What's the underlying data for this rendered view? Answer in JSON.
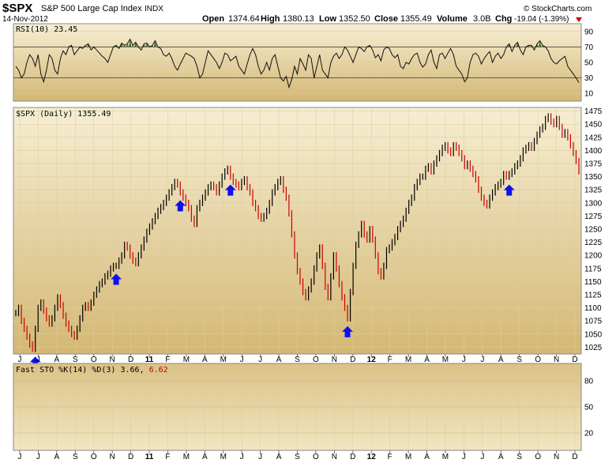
{
  "header": {
    "symbol": "$SPX",
    "name": "S&P 500 Large Cap Index",
    "exchange": "INDX",
    "date": "14-Nov-2012",
    "open_label": "Open",
    "open": "1374.64",
    "high_label": "High",
    "high": "1380.13",
    "low_label": "Low",
    "low": "1352.50",
    "close_label": "Close",
    "close": "1355.49",
    "volume_label": "Volume",
    "volume": "3.0B",
    "chg_label": "Chg",
    "chg": "-19.04 (-1.39%)",
    "copyright": "© StockCharts.com"
  },
  "colors": {
    "panel_bg_top": "#f6eed3",
    "panel_bg_bottom": "#d4b774",
    "up_bar": "#000000",
    "down_bar": "#cc0000",
    "arrow": "#1010ee",
    "rsi_fill": "#4d6b36",
    "stoch_d": "#cc0000"
  },
  "chart_data": [
    {
      "type": "line",
      "title": "RSI(10) 23.45",
      "label": "RSI(10)",
      "value": "23.45",
      "ylim": [
        0,
        100
      ],
      "y_ticks": [
        "90",
        "70",
        "50",
        "30",
        "10"
      ],
      "reference_lines": [
        70,
        30
      ],
      "series": [
        {
          "values": [
            45,
            40,
            30,
            35,
            50,
            60,
            55,
            45,
            60,
            35,
            25,
            40,
            60,
            55,
            40,
            35,
            55,
            65,
            60,
            70,
            72,
            60,
            65,
            70,
            68,
            72,
            74,
            66,
            70,
            66,
            62,
            58,
            55,
            50,
            60,
            70,
            72,
            68,
            75,
            72,
            74,
            80,
            72,
            76,
            70,
            66,
            74,
            75,
            70,
            72,
            78,
            70,
            68,
            60,
            58,
            62,
            55,
            45,
            40,
            48,
            55,
            62,
            60,
            58,
            55,
            45,
            30,
            35,
            50,
            65,
            60,
            55,
            50,
            42,
            50,
            62,
            60,
            52,
            55,
            58,
            45,
            40,
            35,
            48,
            60,
            68,
            60,
            45,
            35,
            40,
            50,
            40,
            55,
            60,
            45,
            30,
            26,
            32,
            18,
            28,
            45,
            35,
            55,
            48,
            40,
            60,
            55,
            30,
            45,
            60,
            40,
            35,
            30,
            50,
            58,
            62,
            55,
            60,
            70,
            66,
            58,
            50,
            60,
            70,
            68,
            64,
            70,
            72,
            66,
            56,
            60,
            52,
            66,
            70,
            68,
            60,
            56,
            60,
            45,
            42,
            50,
            48,
            55,
            60,
            62,
            50,
            44,
            48,
            60,
            66,
            50,
            42,
            60,
            62,
            55,
            62,
            68,
            60,
            45,
            40,
            35,
            25,
            30,
            50,
            60,
            62,
            58,
            48,
            55,
            60,
            64,
            50,
            58,
            62,
            55,
            60,
            70,
            74,
            64,
            72,
            76,
            66,
            60,
            70,
            72,
            72,
            66,
            74,
            78,
            72,
            70,
            65,
            55,
            50,
            48,
            52,
            55,
            58,
            45,
            40,
            35,
            30,
            24
          ]
        }
      ]
    },
    {
      "type": "bar",
      "title": "$SPX (Daily) 1355.49",
      "label": "$SPX (Daily)",
      "value": "1355.49",
      "ylim": [
        1012,
        1482
      ],
      "y_ticks": [
        "1475",
        "1450",
        "1425",
        "1400",
        "1375",
        "1350",
        "1325",
        "1300",
        "1275",
        "1250",
        "1225",
        "1200",
        "1175",
        "1150",
        "1125",
        "1100",
        "1075",
        "1050",
        "1025"
      ],
      "x_labels": [
        "J",
        "J",
        "A",
        "S",
        "O",
        "N",
        "D",
        "11",
        "F",
        "M",
        "A",
        "M",
        "J",
        "J",
        "A",
        "S",
        "O",
        "N",
        "D",
        "12",
        "F",
        "M",
        "A",
        "M",
        "J",
        "J",
        "A",
        "S",
        "O",
        "N",
        "D"
      ],
      "series": [
        {
          "name": "$SPX",
          "values": [
            1090,
            1100,
            1075,
            1060,
            1045,
            1030,
            1022,
            1060,
            1100,
            1110,
            1095,
            1080,
            1070,
            1080,
            1100,
            1120,
            1105,
            1085,
            1070,
            1060,
            1050,
            1045,
            1060,
            1080,
            1100,
            1105,
            1100,
            1110,
            1125,
            1135,
            1145,
            1150,
            1160,
            1165,
            1175,
            1180,
            1180,
            1190,
            1200,
            1220,
            1215,
            1200,
            1190,
            1185,
            1200,
            1215,
            1230,
            1245,
            1255,
            1265,
            1275,
            1285,
            1292,
            1300,
            1310,
            1320,
            1330,
            1340,
            1335,
            1320,
            1310,
            1300,
            1290,
            1270,
            1260,
            1290,
            1300,
            1310,
            1320,
            1330,
            1335,
            1330,
            1320,
            1335,
            1350,
            1360,
            1365,
            1350,
            1340,
            1335,
            1330,
            1340,
            1345,
            1330,
            1320,
            1300,
            1290,
            1275,
            1270,
            1275,
            1285,
            1300,
            1320,
            1330,
            1340,
            1345,
            1325,
            1310,
            1280,
            1240,
            1200,
            1170,
            1150,
            1130,
            1120,
            1135,
            1150,
            1175,
            1200,
            1215,
            1180,
            1140,
            1120,
            1160,
            1200,
            1175,
            1145,
            1120,
            1100,
            1080,
            1130,
            1180,
            1220,
            1240,
            1260,
            1240,
            1230,
            1250,
            1230,
            1200,
            1170,
            1160,
            1180,
            1210,
            1215,
            1225,
            1235,
            1250,
            1260,
            1270,
            1285,
            1300,
            1310,
            1330,
            1340,
            1350,
            1350,
            1365,
            1370,
            1360,
            1375,
            1385,
            1395,
            1405,
            1410,
            1400,
            1395,
            1410,
            1405,
            1395,
            1385,
            1370,
            1375,
            1365,
            1355,
            1345,
            1325,
            1310,
            1300,
            1295,
            1310,
            1320,
            1330,
            1335,
            1340,
            1355,
            1350,
            1355,
            1360,
            1370,
            1375,
            1385,
            1400,
            1405,
            1410,
            1405,
            1418,
            1430,
            1440,
            1445,
            1460,
            1465,
            1455,
            1450,
            1460,
            1445,
            1430,
            1435,
            1425,
            1410,
            1395,
            1380,
            1360
          ]
        }
      ],
      "annotations": [
        {
          "type": "arrow",
          "direction": "up",
          "x_index": 7
        },
        {
          "type": "arrow",
          "direction": "up",
          "x_index": 36
        },
        {
          "type": "arrow",
          "direction": "up",
          "x_index": 59
        },
        {
          "type": "arrow",
          "direction": "up",
          "x_index": 77
        },
        {
          "type": "arrow",
          "direction": "up",
          "x_index": 119
        },
        {
          "type": "arrow",
          "direction": "up",
          "x_index": 177
        },
        {
          "type": "arrow",
          "direction": "up",
          "x_index": 215
        }
      ]
    },
    {
      "type": "line",
      "title": "Fast STO %K(14) %D(3) 3.66, 6.62",
      "label": "Fast STO %K(14) %D(3)",
      "k_value": "3.66",
      "d_value": "6.62",
      "ylim": [
        0,
        100
      ],
      "y_ticks": [
        "80",
        "50",
        "20"
      ],
      "x_labels": [
        "J",
        "J",
        "A",
        "S",
        "O",
        "N",
        "D",
        "11",
        "F",
        "M",
        "A",
        "M",
        "J",
        "J",
        "A",
        "S",
        "O",
        "N",
        "D",
        "12",
        "F",
        "M",
        "A",
        "M",
        "J",
        "J",
        "A",
        "S",
        "O",
        "N",
        "D"
      ],
      "series": []
    }
  ]
}
